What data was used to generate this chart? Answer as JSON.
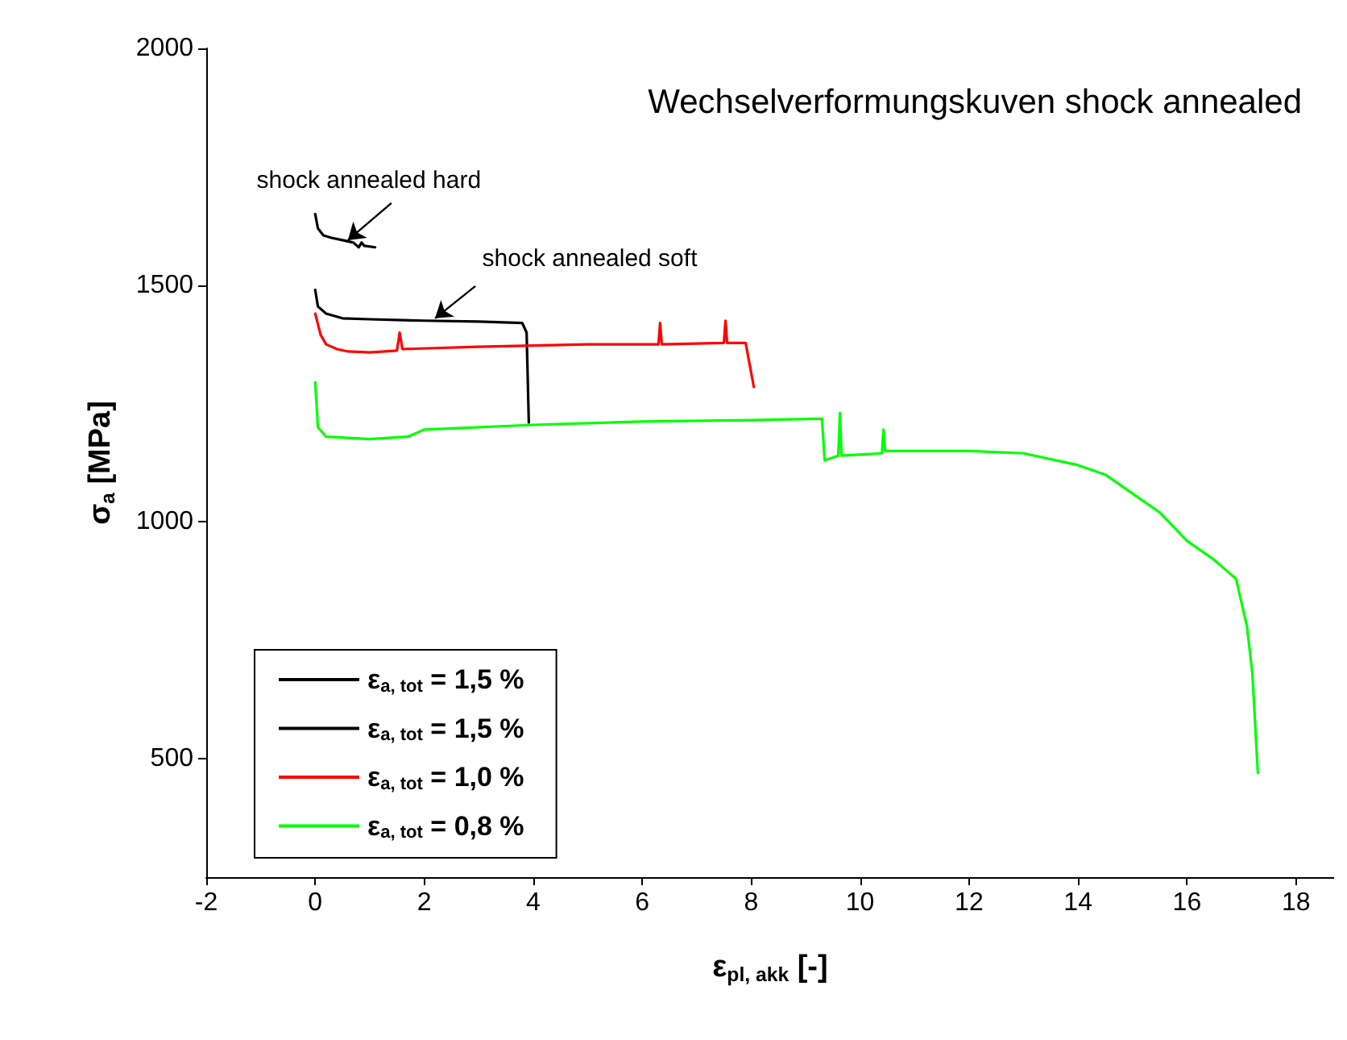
{
  "chart_data": {
    "type": "line",
    "title": "Wechselverformungskuven shock annealed",
    "xlabel": "ε$_{pl, akk}$ [-]",
    "ylabel": "σ$_{a}$ [MPa]",
    "xlim": [
      -2,
      18.7
    ],
    "xticks": [
      -2,
      0,
      2,
      4,
      6,
      8,
      10,
      12,
      14,
      16,
      18
    ],
    "ylim": [
      250,
      2000
    ],
    "yticks": [
      500,
      {
        "value": 1000,
        "label": "1000"
      },
      {
        "value": 1500,
        "label": "1500"
      },
      {
        "value": 2000,
        "label": "2000"
      }
    ],
    "grid": false,
    "legend": "bottom left",
    "marker": "none",
    "line_style": "solid",
    "annotations": [
      {
        "text": "shock annealed hard",
        "x": 0.6,
        "y": 1595
      },
      {
        "text": "shock annealed soft",
        "x": 2.2,
        "y": 1430
      }
    ],
    "series": [
      {
        "name": "ε$_{a, tot}$ = 1,5 %",
        "color": "#000000",
        "x": [
          0,
          0.05,
          0.15,
          0.3,
          0.5,
          0.7,
          0.8,
          0.85,
          0.9,
          1.1
        ],
        "values": [
          1650,
          1620,
          1605,
          1600,
          1595,
          1590,
          1580,
          1590,
          1583,
          1580
        ]
      },
      {
        "name": "ε$_{a, tot}$ = 1,5 %",
        "color": "#000000",
        "x": [
          0,
          0.05,
          0.2,
          0.5,
          1,
          2,
          3,
          3.8,
          3.88,
          3.92
        ],
        "values": [
          1490,
          1455,
          1440,
          1430,
          1428,
          1425,
          1423,
          1420,
          1400,
          1210
        ]
      },
      {
        "name": "ε$_{a, tot}$ = 1,0 %",
        "color": "#ff0000",
        "x": [
          0,
          0.1,
          0.2,
          0.4,
          0.6,
          1,
          1.5,
          1.55,
          1.6,
          3,
          5,
          6.3,
          6.33,
          6.36,
          7.5,
          7.53,
          7.56,
          7.9,
          8.05
        ],
        "values": [
          1440,
          1395,
          1375,
          1365,
          1360,
          1358,
          1362,
          1400,
          1365,
          1370,
          1375,
          1375,
          1420,
          1375,
          1378,
          1425,
          1378,
          1378,
          1285
        ]
      },
      {
        "name": "ε$_{a, tot}$ = 0,8 %",
        "color": "#00ff00",
        "x": [
          0,
          0.05,
          0.2,
          1,
          1.7,
          2,
          4,
          6,
          8,
          9.3,
          9.35,
          9.6,
          9.63,
          9.66,
          10.4,
          10.43,
          10.46,
          12,
          13,
          14,
          14.5,
          15,
          15.5,
          16,
          16.5,
          16.9,
          17.1,
          17.2,
          17.3
        ],
        "values": [
          1295,
          1200,
          1180,
          1175,
          1180,
          1195,
          1205,
          1212,
          1215,
          1218,
          1130,
          1140,
          1230,
          1140,
          1145,
          1195,
          1150,
          1150,
          1145,
          1120,
          1100,
          1060,
          1020,
          960,
          920,
          880,
          780,
          680,
          470
        ]
      }
    ]
  }
}
